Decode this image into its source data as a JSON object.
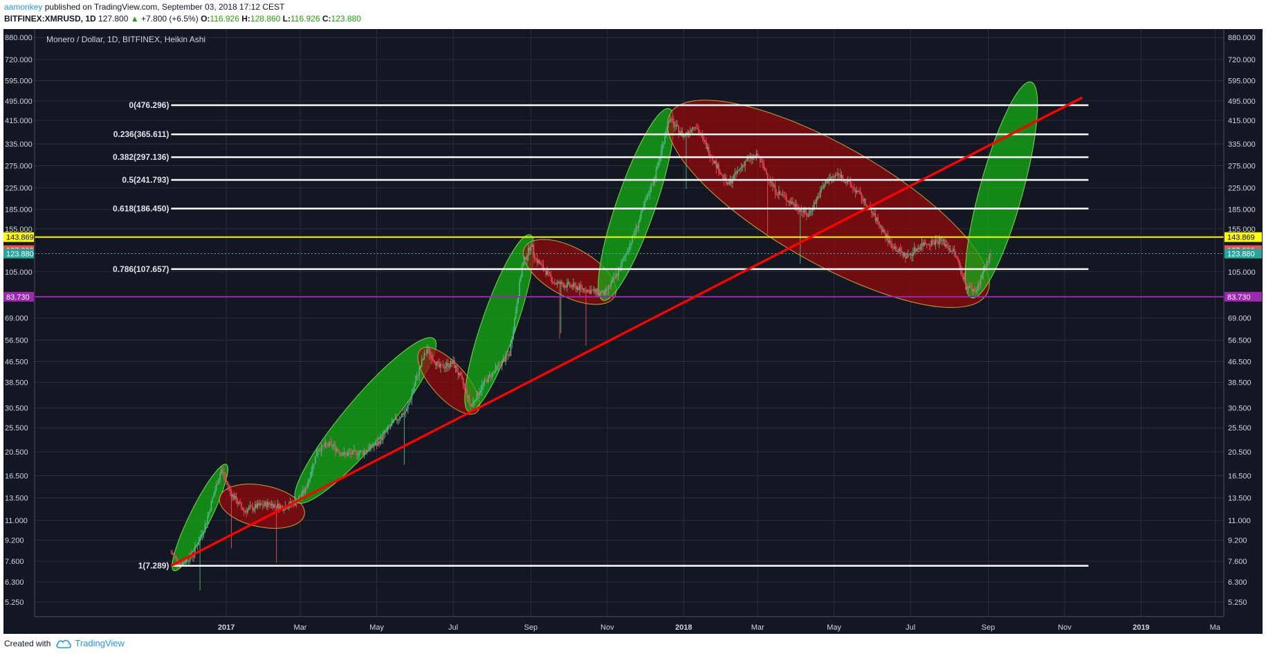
{
  "header": {
    "author": "aamonkey",
    "published_text": "published on TradingView.com, September 03, 2018 17:12 CEST",
    "symbol": "BITFINEX:XMRUSD, 1D",
    "last": "127.800",
    "change": "+7.800 (+6.5%)",
    "o_label": "O:",
    "o_value": "116.926",
    "h_label": "H:",
    "h_value": "128.860",
    "l_label": "L:",
    "l_value": "116.926",
    "c_label": "C:",
    "c_value": "123.880"
  },
  "footer": {
    "created_with": "Created with",
    "brand": "TradingView"
  },
  "chart_data": {
    "type": "candlestick",
    "title": "Monero / Dollar, 1D, BITFINEX, Heikin Ashi",
    "y_scale": "log",
    "ylim": [
      4.6,
      950
    ],
    "price_ticks": [
      "880.000",
      "720.000",
      "595.000",
      "495.000",
      "415.000",
      "335.000",
      "275.000",
      "225.000",
      "185.000",
      "155.000",
      "105.000",
      "69.000",
      "56.500",
      "46.500",
      "38.500",
      "30.500",
      "25.500",
      "20.500",
      "16.500",
      "13.500",
      "11.000",
      "9.200",
      "7.600",
      "6.300",
      "5.250"
    ],
    "time_ticks": [
      {
        "label": "2017",
        "date": "2017-01-01"
      },
      {
        "label": "Mar",
        "date": "2017-03-01"
      },
      {
        "label": "May",
        "date": "2017-05-01"
      },
      {
        "label": "Jul",
        "date": "2017-07-01"
      },
      {
        "label": "Sep",
        "date": "2017-09-01"
      },
      {
        "label": "Nov",
        "date": "2017-11-01"
      },
      {
        "label": "2018",
        "date": "2018-01-01"
      },
      {
        "label": "Mar",
        "date": "2018-03-01"
      },
      {
        "label": "May",
        "date": "2018-05-01"
      },
      {
        "label": "Jul",
        "date": "2018-07-01"
      },
      {
        "label": "Sep",
        "date": "2018-09-01"
      },
      {
        "label": "Nov",
        "date": "2018-11-01"
      },
      {
        "label": "2019",
        "date": "2019-01-01"
      },
      {
        "label": "Ma",
        "date": "2019-03-01"
      }
    ],
    "price_path": [
      {
        "date": "2016-11-18",
        "close": 8.2
      },
      {
        "date": "2016-11-25",
        "close": 7.4
      },
      {
        "date": "2016-12-05",
        "close": 8.0
      },
      {
        "date": "2016-12-15",
        "close": 10.5
      },
      {
        "date": "2016-12-22",
        "close": 14.0
      },
      {
        "date": "2016-12-28",
        "close": 17.5
      },
      {
        "date": "2017-01-05",
        "close": 14.0
      },
      {
        "date": "2017-01-15",
        "close": 12.0
      },
      {
        "date": "2017-01-25",
        "close": 12.5
      },
      {
        "date": "2017-02-05",
        "close": 12.8
      },
      {
        "date": "2017-02-15",
        "close": 12.4
      },
      {
        "date": "2017-02-25",
        "close": 13.0
      },
      {
        "date": "2017-03-05",
        "close": 14.5
      },
      {
        "date": "2017-03-15",
        "close": 21.0
      },
      {
        "date": "2017-03-25",
        "close": 22.0
      },
      {
        "date": "2017-04-05",
        "close": 20.0
      },
      {
        "date": "2017-04-20",
        "close": 20.5
      },
      {
        "date": "2017-05-01",
        "close": 22.0
      },
      {
        "date": "2017-05-15",
        "close": 27.0
      },
      {
        "date": "2017-05-25",
        "close": 30.0
      },
      {
        "date": "2017-06-05",
        "close": 45.0
      },
      {
        "date": "2017-06-10",
        "close": 52.0
      },
      {
        "date": "2017-06-20",
        "close": 44.0
      },
      {
        "date": "2017-07-01",
        "close": 46.0
      },
      {
        "date": "2017-07-10",
        "close": 37.0
      },
      {
        "date": "2017-07-15",
        "close": 31.0
      },
      {
        "date": "2017-07-25",
        "close": 38.0
      },
      {
        "date": "2017-08-05",
        "close": 44.0
      },
      {
        "date": "2017-08-15",
        "close": 50.0
      },
      {
        "date": "2017-08-25",
        "close": 110.0
      },
      {
        "date": "2017-09-01",
        "close": 135.0
      },
      {
        "date": "2017-09-05",
        "close": 118.0
      },
      {
        "date": "2017-09-20",
        "close": 95.0
      },
      {
        "date": "2017-10-05",
        "close": 92.0
      },
      {
        "date": "2017-10-20",
        "close": 88.0
      },
      {
        "date": "2017-10-30",
        "close": 86.0
      },
      {
        "date": "2017-11-10",
        "close": 105.0
      },
      {
        "date": "2017-11-25",
        "close": 160.0
      },
      {
        "date": "2017-12-10",
        "close": 260.0
      },
      {
        "date": "2017-12-20",
        "close": 420.0
      },
      {
        "date": "2018-01-01",
        "close": 360.0
      },
      {
        "date": "2018-01-10",
        "close": 400.0
      },
      {
        "date": "2018-01-20",
        "close": 320.0
      },
      {
        "date": "2018-02-05",
        "close": 230.0
      },
      {
        "date": "2018-02-20",
        "close": 290.0
      },
      {
        "date": "2018-03-01",
        "close": 300.0
      },
      {
        "date": "2018-03-15",
        "close": 220.0
      },
      {
        "date": "2018-04-01",
        "close": 190.0
      },
      {
        "date": "2018-04-10",
        "close": 175.0
      },
      {
        "date": "2018-04-25",
        "close": 240.0
      },
      {
        "date": "2018-05-05",
        "close": 255.0
      },
      {
        "date": "2018-05-20",
        "close": 215.0
      },
      {
        "date": "2018-06-05",
        "close": 165.0
      },
      {
        "date": "2018-06-15",
        "close": 135.0
      },
      {
        "date": "2018-06-28",
        "close": 120.0
      },
      {
        "date": "2018-07-10",
        "close": 135.0
      },
      {
        "date": "2018-07-25",
        "close": 140.0
      },
      {
        "date": "2018-08-05",
        "close": 125.0
      },
      {
        "date": "2018-08-15",
        "close": 92.0
      },
      {
        "date": "2018-08-22",
        "close": 88.0
      },
      {
        "date": "2018-08-28",
        "close": 105.0
      },
      {
        "date": "2018-09-03",
        "close": 123.88
      }
    ],
    "fibonacci": [
      {
        "label": "0(476.296)",
        "price": 476.296
      },
      {
        "label": "0.236(365.611)",
        "price": 365.611
      },
      {
        "label": "0.382(297.136)",
        "price": 297.136
      },
      {
        "label": "0.5(241.793)",
        "price": 241.793
      },
      {
        "label": "0.618(186.450)",
        "price": 186.45
      },
      {
        "label": "0.786(107.657)",
        "price": 107.657
      },
      {
        "label": "1(7.289)",
        "price": 7.289
      }
    ],
    "horizontal_levels": [
      {
        "price": 143.869,
        "label": "143.869",
        "color": "#ffff00",
        "text_color": "#000000"
      },
      {
        "price": 83.73,
        "label": "83.730",
        "color": "#9c27b0",
        "text_color": "#ffffff"
      }
    ],
    "price_labels": [
      {
        "price": 127.8,
        "label": "127.800",
        "color": "#ef5350"
      },
      {
        "price": 123.88,
        "label": "123.880",
        "color": "#26a69a"
      }
    ],
    "trendline": {
      "from": {
        "date": "2016-11-18",
        "price": 7.289
      },
      "to": {
        "date": "2018-11-15",
        "price": 510
      },
      "color": "#ff0000"
    },
    "ellipses": [
      {
        "color": "green",
        "p1": {
          "date": "2016-11-22",
          "price": 7.3
        },
        "p2": {
          "date": "2016-12-30",
          "price": 17.5
        },
        "width": 30
      },
      {
        "color": "red",
        "p1": {
          "date": "2016-12-31",
          "price": 13.4
        },
        "p2": {
          "date": "2017-02-28",
          "price": 11.7
        },
        "width": 60
      },
      {
        "color": "green",
        "p1": {
          "date": "2017-03-01",
          "price": 13.5
        },
        "p2": {
          "date": "2017-06-13",
          "price": 55.0
        },
        "width": 64
      },
      {
        "color": "red",
        "p1": {
          "date": "2017-06-08",
          "price": 50.0
        },
        "p2": {
          "date": "2017-07-17",
          "price": 30.5
        },
        "width": 50
      },
      {
        "color": "green",
        "p1": {
          "date": "2017-07-15",
          "price": 31.0
        },
        "p2": {
          "date": "2017-08-30",
          "price": 140.0
        },
        "width": 50
      },
      {
        "color": "red",
        "p1": {
          "date": "2017-08-31",
          "price": 128.0
        },
        "p2": {
          "date": "2017-11-03",
          "price": 86.0
        },
        "width": 70
      },
      {
        "color": "green",
        "p1": {
          "date": "2017-10-30",
          "price": 85.0
        },
        "p2": {
          "date": "2017-12-19",
          "price": 440.0
        },
        "width": 56
      },
      {
        "color": "red",
        "p1": {
          "date": "2017-12-25",
          "price": 430.0
        },
        "p2": {
          "date": "2018-08-27",
          "price": 88.0
        },
        "width": 170
      },
      {
        "color": "green",
        "p1": {
          "date": "2018-08-20",
          "price": 87.0
        },
        "p2": {
          "date": "2018-10-04",
          "price": 560.0
        },
        "width": 62
      }
    ],
    "colors": {
      "background": "#131722",
      "grid": "#2a2e39",
      "up": "#53b987",
      "down": "#eb4d5c",
      "fib": "#ffffff"
    }
  }
}
